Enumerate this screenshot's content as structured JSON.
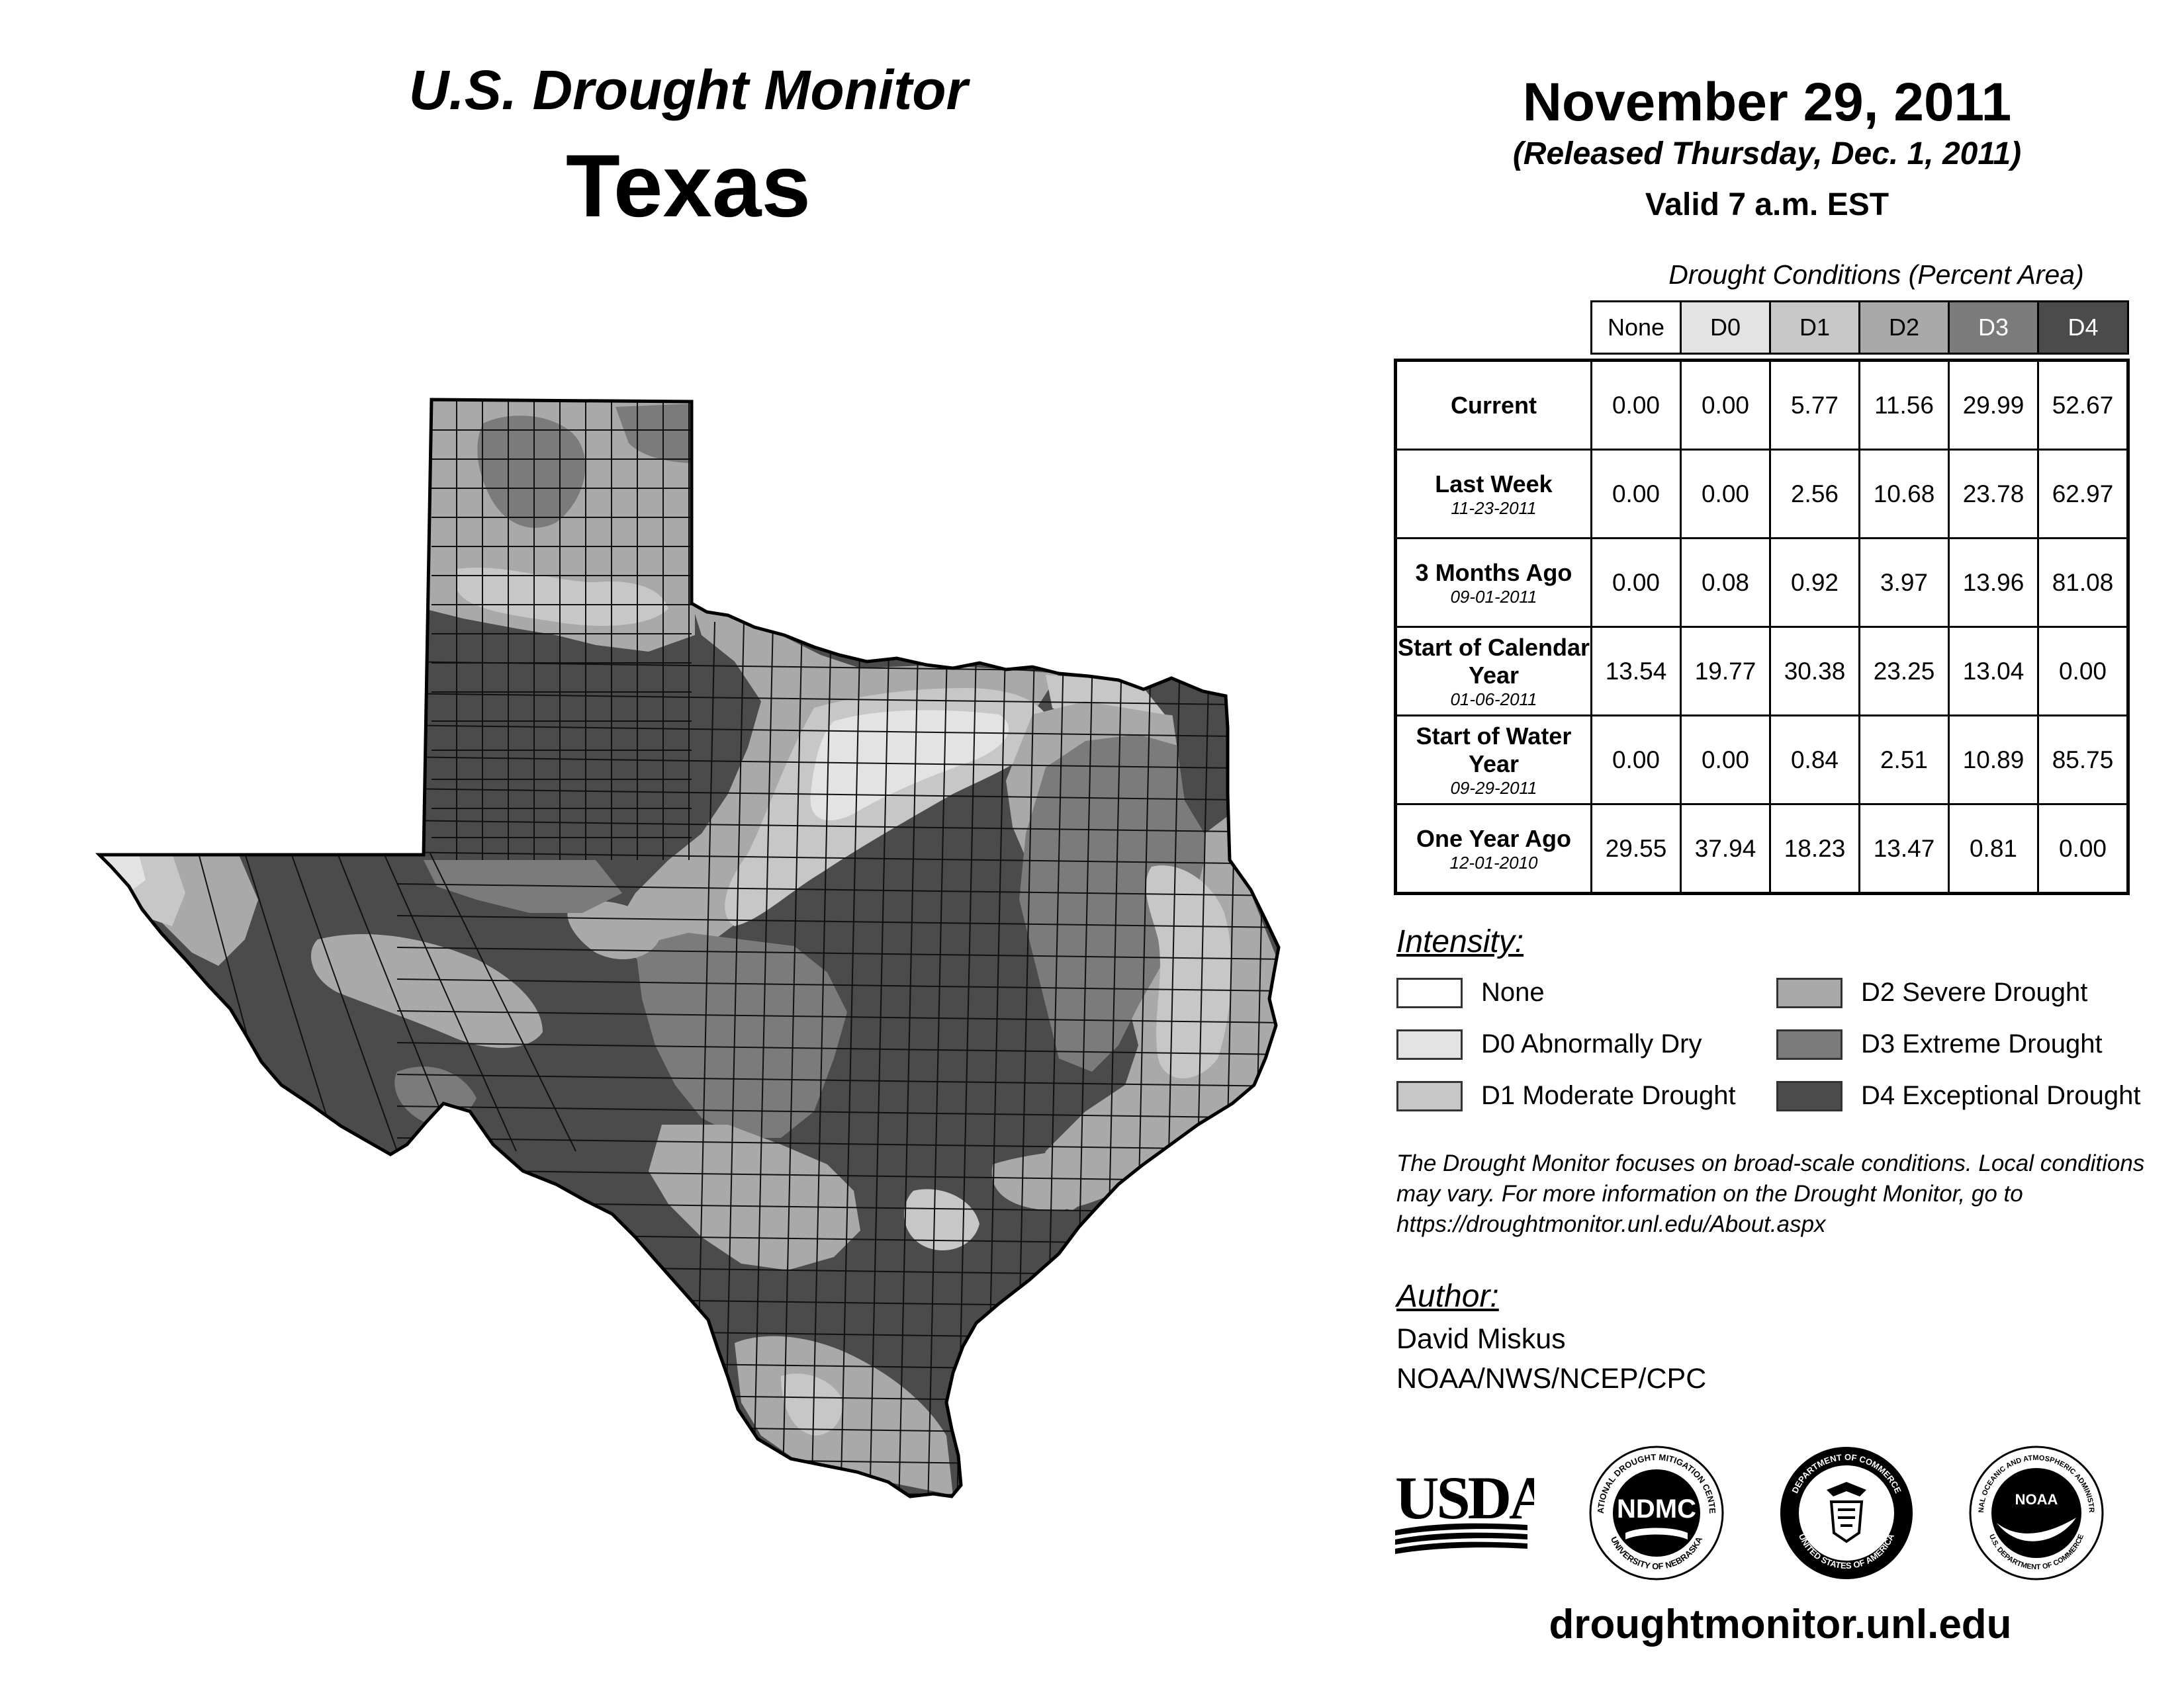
{
  "header": {
    "title": "U.S. Drought Monitor",
    "state": "Texas",
    "date": "November 29, 2011",
    "release": "(Released Thursday, Dec. 1, 2011)",
    "valid": "Valid 7 a.m. EST"
  },
  "table": {
    "caption": "Drought Conditions (Percent Area)",
    "columns": [
      "None",
      "D0",
      "D1",
      "D2",
      "D3",
      "D4"
    ],
    "rows": [
      {
        "label": "Current",
        "sublabel": "",
        "values": [
          "0.00",
          "0.00",
          "5.77",
          "11.56",
          "29.99",
          "52.67"
        ]
      },
      {
        "label": "Last Week",
        "sublabel": "11-23-2011",
        "values": [
          "0.00",
          "0.00",
          "2.56",
          "10.68",
          "23.78",
          "62.97"
        ]
      },
      {
        "label": "3 Months Ago",
        "sublabel": "09-01-2011",
        "values": [
          "0.00",
          "0.08",
          "0.92",
          "3.97",
          "13.96",
          "81.08"
        ]
      },
      {
        "label": "Start of Calendar Year",
        "sublabel": "01-06-2011",
        "values": [
          "13.54",
          "19.77",
          "30.38",
          "23.25",
          "13.04",
          "0.00"
        ]
      },
      {
        "label": "Start of Water Year",
        "sublabel": "09-29-2011",
        "values": [
          "0.00",
          "0.00",
          "0.84",
          "2.51",
          "10.89",
          "85.75"
        ]
      },
      {
        "label": "One Year Ago",
        "sublabel": "12-01-2010",
        "values": [
          "29.55",
          "37.94",
          "18.23",
          "13.47",
          "0.81",
          "0.00"
        ]
      }
    ]
  },
  "legend": {
    "heading": "Intensity:",
    "items": [
      {
        "label": "None",
        "color": "#ffffff"
      },
      {
        "label": "D0 Abnormally Dry",
        "color": "#e3e3e3"
      },
      {
        "label": "D1 Moderate Drought",
        "color": "#c7c7c7"
      },
      {
        "label": "D2 Severe Drought",
        "color": "#a9a9a9"
      },
      {
        "label": "D3 Extreme Drought",
        "color": "#7b7b7b"
      },
      {
        "label": "D4 Exceptional Drought",
        "color": "#4b4b4b"
      }
    ]
  },
  "note": "The Drought Monitor focuses on broad-scale conditions. Local conditions may vary. For more information on the Drought Monitor, go to https://droughtmonitor.unl.edu/About.aspx",
  "author": {
    "heading": "Author:",
    "name": "David Miskus",
    "org": "NOAA/NWS/NCEP/CPC"
  },
  "logos": {
    "usda": "USDA",
    "ndmc": "NDMC",
    "ndmc_ring_top": "NATIONAL DROUGHT MITIGATION CENTER",
    "ndmc_ring_bottom": "UNIVERSITY OF NEBRASKA",
    "doc_ring_top": "DEPARTMENT OF COMMERCE",
    "doc_ring_bottom": "UNITED STATES OF AMERICA",
    "noaa": "NOAA",
    "noaa_ring_top": "NATIONAL OCEANIC AND ATMOSPHERIC ADMINISTRATION",
    "noaa_ring_bottom": "U.S. DEPARTMENT OF COMMERCE"
  },
  "website": "droughtmonitor.unl.edu",
  "colors": {
    "none": "#ffffff",
    "d0": "#e3e3e3",
    "d1": "#c7c7c7",
    "d2": "#a9a9a9",
    "d3": "#7b7b7b",
    "d4": "#4b4b4b",
    "border": "#000000"
  }
}
